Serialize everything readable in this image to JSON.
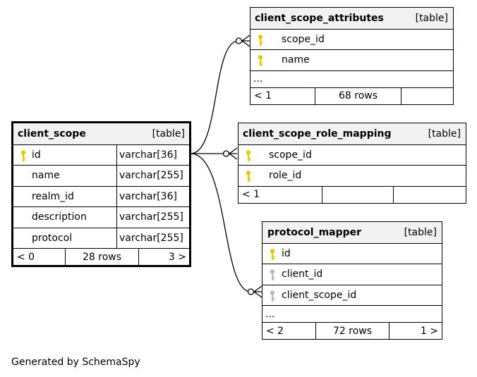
{
  "tables": {
    "client_scope_attributes": {
      "name": "client_scope_attributes",
      "kind": "[table]",
      "columns": [
        {
          "name": "scope_id"
        },
        {
          "name": "name"
        }
      ],
      "ellipsis": "...",
      "stats": {
        "parents": "< 1",
        "rows": "68 rows"
      }
    },
    "client_scope": {
      "name": "client_scope",
      "kind": "[table]",
      "columns": [
        {
          "name": "id",
          "type": "varchar[36]"
        },
        {
          "name": "name",
          "type": "varchar[255]"
        },
        {
          "name": "realm_id",
          "type": "varchar[36]"
        },
        {
          "name": "description",
          "type": "varchar[255]"
        },
        {
          "name": "protocol",
          "type": "varchar[255]"
        }
      ],
      "stats": {
        "parents": "< 0",
        "rows": "28 rows",
        "children": "3 >"
      }
    },
    "client_scope_role_mapping": {
      "name": "client_scope_role_mapping",
      "kind": "[table]",
      "columns": [
        {
          "name": "scope_id"
        },
        {
          "name": "role_id"
        }
      ],
      "stats": {
        "parents": "< 1"
      }
    },
    "protocol_mapper": {
      "name": "protocol_mapper",
      "kind": "[table]",
      "columns": [
        {
          "name": "id"
        },
        {
          "name": "client_id"
        },
        {
          "name": "client_scope_id"
        }
      ],
      "ellipsis": "...",
      "stats": {
        "parents": "< 2",
        "rows": "72 rows",
        "children": "1 >"
      }
    }
  },
  "colors": {
    "primary_key": "#e6c800",
    "foreign_key": "#b8b8b8",
    "header_bg": "#f2f2f2"
  },
  "caption": "Generated by SchemaSpy"
}
